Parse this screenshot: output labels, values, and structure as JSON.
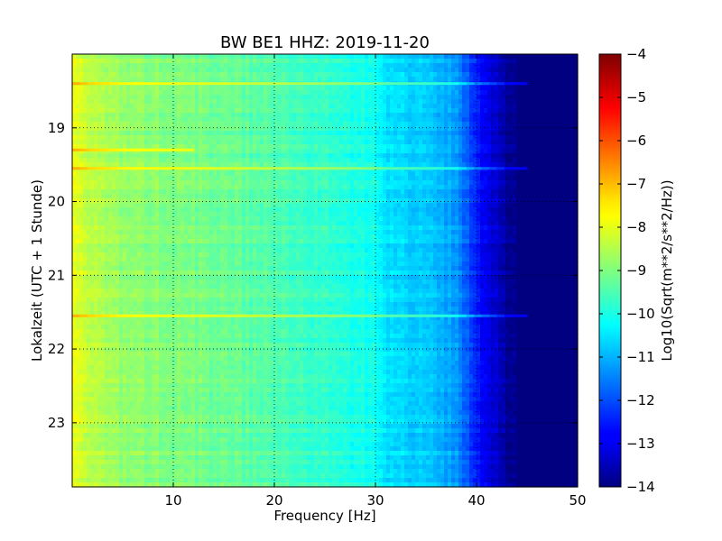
{
  "chart_data": {
    "type": "heatmap",
    "title": "BW BE1 HHZ: 2019-11-20",
    "xlabel": "Frequency [Hz]",
    "ylabel": "Lokalzeit (UTC + 1 Stunde)",
    "xlim": [
      0,
      50
    ],
    "ylim": [
      23.87,
      18.0
    ],
    "x_ticks": [
      10,
      20,
      30,
      40,
      50
    ],
    "x_tick_labels": [
      "10",
      "20",
      "30",
      "40",
      "50"
    ],
    "y_ticks": [
      19,
      20,
      21,
      22,
      23
    ],
    "y_tick_labels": [
      "19",
      "20",
      "21",
      "22",
      "23"
    ],
    "grid": true,
    "colorbar": {
      "label": "Log10(Sqrt(m**2/s**2/Hz))",
      "min": -14,
      "max": -4,
      "ticks": [
        -4,
        -5,
        -6,
        -7,
        -8,
        -9,
        -10,
        -11,
        -12,
        -13,
        -14
      ],
      "tick_labels": [
        "−4",
        "−5",
        "−6",
        "−7",
        "−8",
        "−9",
        "−10",
        "−11",
        "−12",
        "−13",
        "−14"
      ],
      "colormap": "jet"
    },
    "frequency_profile": {
      "x": [
        0,
        2,
        5,
        10,
        15,
        20,
        25,
        28,
        30,
        31,
        35,
        38,
        40,
        42,
        43,
        45,
        50
      ],
      "value": [
        -8.0,
        -8.5,
        -8.8,
        -9.0,
        -9.2,
        -9.5,
        -9.8,
        -10.0,
        -10.1,
        -10.5,
        -10.8,
        -11.2,
        -12.5,
        -13.3,
        -13.8,
        -14.0,
        -14.0
      ]
    },
    "bright_lines": [
      {
        "time": 18.4,
        "freq_max": 45
      },
      {
        "time": 19.3,
        "freq_max": 12
      },
      {
        "time": 19.55,
        "freq_max": 45
      },
      {
        "time": 21.55,
        "freq_max": 45
      }
    ]
  }
}
